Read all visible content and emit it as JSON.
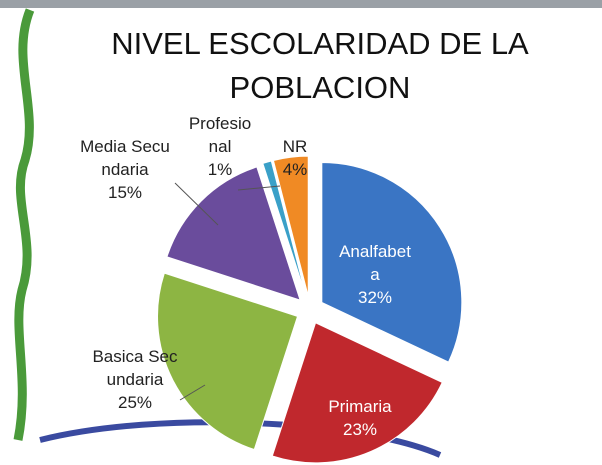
{
  "chart_data": {
    "type": "pie",
    "title": "NIVEL ESCOLARIDAD DE LA POBLACION",
    "categories": [
      "Analfabeta",
      "Primaria",
      "Basica Secundaria",
      "Media Secundaria",
      "Profesional",
      "NR"
    ],
    "values": [
      32,
      23,
      25,
      15,
      1,
      4
    ],
    "value_labels": [
      "32%",
      "23%",
      "25%",
      "15%",
      "1%",
      "4%"
    ],
    "colors": [
      "#3a75c4",
      "#c0282d",
      "#8db543",
      "#6a4c9c",
      "#3aa0c8",
      "#f08a24"
    ]
  }
}
